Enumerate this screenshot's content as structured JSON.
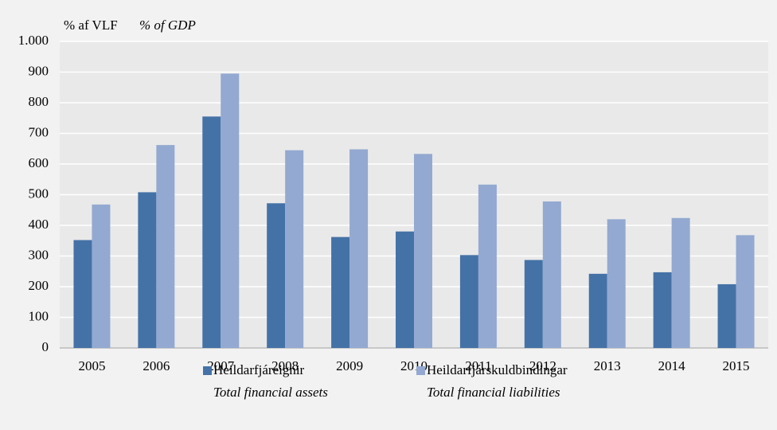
{
  "chart_data": {
    "type": "bar",
    "y_label": "% af VLF",
    "y_label_en": "% of GDP",
    "categories": [
      "2005",
      "2006",
      "2007",
      "2008",
      "2009",
      "2010",
      "2011",
      "2012",
      "2013",
      "2014",
      "2015"
    ],
    "series": [
      {
        "name": "Heildarfjáreignir",
        "name_en": "Total financial assets",
        "color": "#4472a7",
        "values": [
          352,
          508,
          755,
          472,
          362,
          380,
          303,
          287,
          242,
          247,
          208
        ]
      },
      {
        "name": "Heildarfjárskuldbindingar",
        "name_en": "Total financial liabilities",
        "color": "#93a9d1",
        "values": [
          468,
          662,
          895,
          645,
          648,
          633,
          533,
          478,
          420,
          424,
          368
        ]
      }
    ],
    "ylim": [
      0,
      1000
    ],
    "yticks": [
      0,
      100,
      200,
      300,
      400,
      500,
      600,
      700,
      800,
      900,
      {
        "value": 1000,
        "label": "1.000"
      }
    ],
    "grid": true,
    "legend": "bottom"
  }
}
